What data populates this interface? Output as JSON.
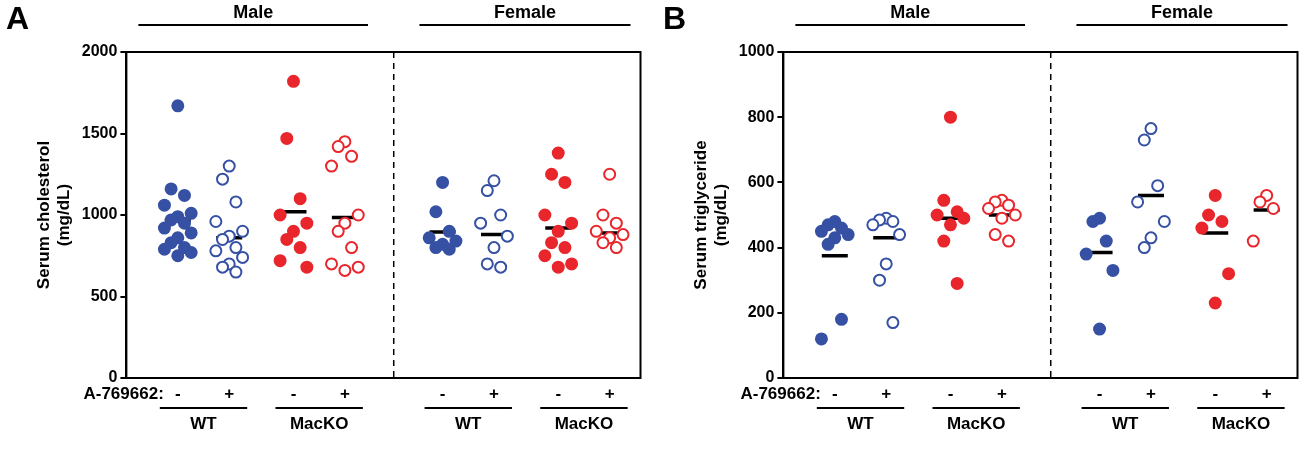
{
  "chart_data": [
    {
      "type": "scatter",
      "panel": "A",
      "y_label": [
        "Serum cholesterol",
        "(mg/dL)"
      ],
      "ylim": [
        0,
        2000
      ],
      "yticks": [
        0,
        500,
        1000,
        1500,
        2000
      ],
      "treatment_label": "A-769662:",
      "groups": [
        {
          "sex": "Male",
          "genotype": "WT",
          "treatment": "-",
          "color": "#3651a4",
          "marker": "filled_circle",
          "values": [
            1670,
            1160,
            1120,
            1060,
            1010,
            990,
            970,
            950,
            920,
            890,
            860,
            830,
            800,
            790,
            770,
            750
          ],
          "mean": 970
        },
        {
          "sex": "Male",
          "genotype": "WT",
          "treatment": "+",
          "color": "#3651a4",
          "marker": "open_circle",
          "values": [
            1300,
            1220,
            1080,
            960,
            900,
            870,
            850,
            800,
            780,
            740,
            700,
            680,
            650
          ],
          "mean": 860
        },
        {
          "sex": "Male",
          "genotype": "MacKO",
          "treatment": "-",
          "color": "#e8262c",
          "marker": "filled_circle",
          "values": [
            1820,
            1470,
            1100,
            1000,
            950,
            900,
            850,
            800,
            720,
            680
          ],
          "mean": 1020
        },
        {
          "sex": "Male",
          "genotype": "MacKO",
          "treatment": "+",
          "color": "#e8262c",
          "marker": "open_circle",
          "values": [
            1450,
            1420,
            1360,
            1300,
            1000,
            950,
            900,
            800,
            700,
            680,
            660
          ],
          "mean": 985
        },
        {
          "sex": "Female",
          "genotype": "WT",
          "treatment": "-",
          "color": "#3651a4",
          "marker": "filled_circle",
          "values": [
            1200,
            1020,
            900,
            860,
            840,
            820,
            800,
            790
          ],
          "mean": 895
        },
        {
          "sex": "Female",
          "genotype": "WT",
          "treatment": "+",
          "color": "#3651a4",
          "marker": "open_circle",
          "values": [
            1210,
            1150,
            1000,
            950,
            870,
            800,
            700,
            680
          ],
          "mean": 880
        },
        {
          "sex": "Female",
          "genotype": "MacKO",
          "treatment": "-",
          "color": "#e8262c",
          "marker": "filled_circle",
          "values": [
            1380,
            1250,
            1200,
            1000,
            950,
            900,
            830,
            800,
            750,
            700,
            680
          ],
          "mean": 920
        },
        {
          "sex": "Female",
          "genotype": "MacKO",
          "treatment": "+",
          "color": "#e8262c",
          "marker": "open_circle",
          "values": [
            1250,
            1000,
            950,
            900,
            880,
            860,
            830,
            800
          ],
          "mean": 890
        }
      ]
    },
    {
      "type": "scatter",
      "panel": "B",
      "y_label": [
        "Serum triglyceride",
        "(mg/dL)"
      ],
      "ylim": [
        0,
        1000
      ],
      "yticks": [
        0,
        200,
        400,
        600,
        800,
        1000
      ],
      "treatment_label": "A-769662:",
      "groups": [
        {
          "sex": "Male",
          "genotype": "WT",
          "treatment": "-",
          "color": "#3651a4",
          "marker": "filled_circle",
          "values": [
            480,
            470,
            460,
            450,
            440,
            430,
            410,
            180,
            120
          ],
          "mean": 375
        },
        {
          "sex": "Male",
          "genotype": "WT",
          "treatment": "+",
          "color": "#3651a4",
          "marker": "open_circle",
          "values": [
            490,
            485,
            480,
            470,
            440,
            350,
            300,
            170
          ],
          "mean": 430
        },
        {
          "sex": "Male",
          "genotype": "MacKO",
          "treatment": "-",
          "color": "#e8262c",
          "marker": "filled_circle",
          "values": [
            800,
            545,
            510,
            500,
            490,
            470,
            420,
            290
          ],
          "mean": 490
        },
        {
          "sex": "Male",
          "genotype": "MacKO",
          "treatment": "+",
          "color": "#e8262c",
          "marker": "open_circle",
          "values": [
            545,
            540,
            530,
            520,
            500,
            490,
            440,
            420
          ],
          "mean": 500
        },
        {
          "sex": "Female",
          "genotype": "WT",
          "treatment": "-",
          "color": "#3651a4",
          "marker": "filled_circle",
          "values": [
            490,
            480,
            420,
            380,
            330,
            150
          ],
          "mean": 385
        },
        {
          "sex": "Female",
          "genotype": "WT",
          "treatment": "+",
          "color": "#3651a4",
          "marker": "open_circle",
          "values": [
            765,
            730,
            590,
            540,
            480,
            430,
            400
          ],
          "mean": 560
        },
        {
          "sex": "Female",
          "genotype": "MacKO",
          "treatment": "-",
          "color": "#e8262c",
          "marker": "filled_circle",
          "values": [
            560,
            500,
            480,
            460,
            320,
            230
          ],
          "mean": 445
        },
        {
          "sex": "Female",
          "genotype": "MacKO",
          "treatment": "+",
          "color": "#e8262c",
          "marker": "open_circle",
          "values": [
            560,
            540,
            520,
            420
          ],
          "mean": 515
        }
      ]
    }
  ]
}
